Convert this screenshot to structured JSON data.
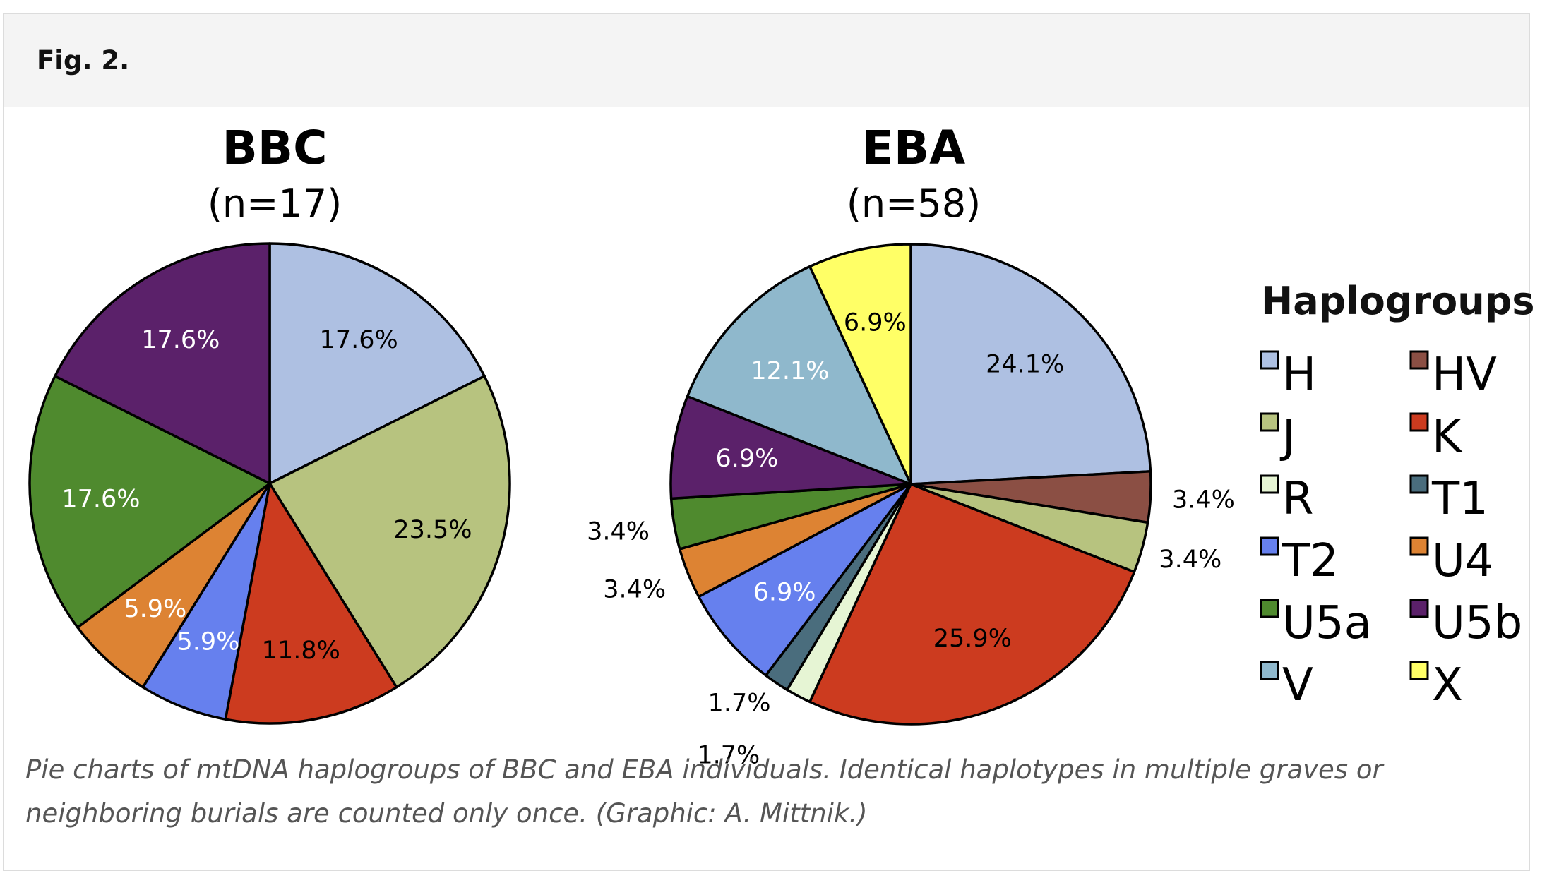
{
  "figure": {
    "label": "Fig. 2.",
    "caption_line1": "Pie charts of mtDNA haplogroups of BBC and EBA individuals. Identical haplotypes in multiple graves or",
    "caption_line2": "neighboring burials are counted only once. (Graphic: A. Mittnik.)"
  },
  "legend": {
    "title": "Haplogroups",
    "items": [
      {
        "name": "H",
        "color": "#aec0e2"
      },
      {
        "name": "HV",
        "color": "#8b4f44"
      },
      {
        "name": "J",
        "color": "#b7c37f"
      },
      {
        "name": "K",
        "color": "#cc3b1f"
      },
      {
        "name": "R",
        "color": "#e6f5d4"
      },
      {
        "name": "T1",
        "color": "#4a6d7d"
      },
      {
        "name": "T2",
        "color": "#6680ee"
      },
      {
        "name": "U4",
        "color": "#dd8333"
      },
      {
        "name": "U5a",
        "color": "#4f8a2e"
      },
      {
        "name": "U5b",
        "color": "#5b216a"
      },
      {
        "name": "V",
        "color": "#8fb8cc"
      },
      {
        "name": "X",
        "color": "#ffff66"
      }
    ]
  },
  "chart_data": [
    {
      "type": "pie",
      "title": "BBC",
      "subtitle": "(n=17)",
      "slices": [
        {
          "name": "H",
          "value": 17.6,
          "label": "17.6%"
        },
        {
          "name": "J",
          "value": 23.5,
          "label": "23.5%"
        },
        {
          "name": "K",
          "value": 11.8,
          "label": "11.8%"
        },
        {
          "name": "T2",
          "value": 5.9,
          "label": "5.9%"
        },
        {
          "name": "U4",
          "value": 5.9,
          "label": "5.9%"
        },
        {
          "name": "U5a",
          "value": 17.6,
          "label": "17.6%"
        },
        {
          "name": "U5b",
          "value": 17.6,
          "label": "17.6%"
        }
      ]
    },
    {
      "type": "pie",
      "title": "EBA",
      "subtitle": "(n=58)",
      "slices": [
        {
          "name": "H",
          "value": 24.1,
          "label": "24.1%"
        },
        {
          "name": "HV",
          "value": 3.4,
          "label": "3.4%"
        },
        {
          "name": "J",
          "value": 3.4,
          "label": "3.4%"
        },
        {
          "name": "K",
          "value": 25.9,
          "label": "25.9%"
        },
        {
          "name": "R",
          "value": 1.7,
          "label": "1.7%"
        },
        {
          "name": "T1",
          "value": 1.7,
          "label": "1.7%"
        },
        {
          "name": "T2",
          "value": 6.9,
          "label": "6.9%"
        },
        {
          "name": "U4",
          "value": 3.4,
          "label": "3.4%"
        },
        {
          "name": "U5a",
          "value": 3.4,
          "label": "3.4%"
        },
        {
          "name": "U5b",
          "value": 6.9,
          "label": "6.9%"
        },
        {
          "name": "V",
          "value": 12.1,
          "label": "12.1%"
        },
        {
          "name": "X",
          "value": 6.9,
          "label": "6.9%"
        }
      ]
    }
  ]
}
